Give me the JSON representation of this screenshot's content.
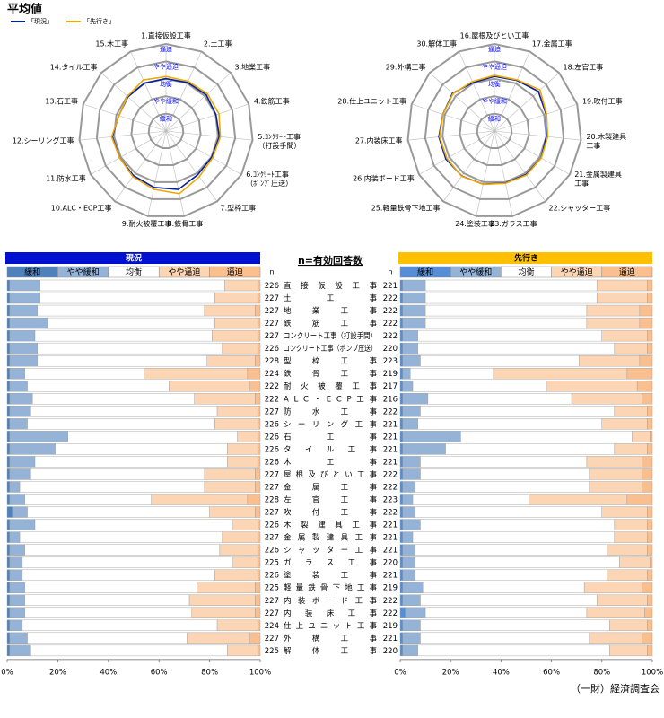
{
  "title": "平均値",
  "n_note": "n=有効回答数",
  "footer": "（一財）経済調査会",
  "chart_data": [
    {
      "type": "radar",
      "categories": [
        "1.直接仮設工事",
        "2.土工事",
        "3.地業工事",
        "4.鉄筋工事",
        "5.ｺﾝｸﾘｰﾄ工事（打設手間）",
        "6.ｺﾝｸﾘｰﾄ工事（ﾎﾟﾝﾌﾟ圧送）",
        "7.型枠工事",
        "8.鉄骨工事",
        "9.耐火被覆工事",
        "10.ALC・ECP工事",
        "11.防水工事",
        "12.シーリング工事",
        "13.石工事",
        "14.タイル工事",
        "15.木工事"
      ],
      "rlim": [
        0,
        5
      ],
      "rticks": [
        {
          "value": 1,
          "label": "緩和"
        },
        {
          "value": 2,
          "label": "やや緩和"
        },
        {
          "value": 3,
          "label": "均衡"
        },
        {
          "value": 4,
          "label": "やや逼迫"
        },
        {
          "value": 5,
          "label": "逼迫"
        }
      ],
      "series": [
        {
          "name": "「現況」",
          "color": "#00209f",
          "values": [
            3.01,
            3.05,
            3.11,
            3.02,
            3.08,
            3.03,
            3.1,
            3.43,
            3.31,
            3.17,
            3.08,
            3.1,
            2.85,
            2.94,
            3.02
          ]
        },
        {
          "name": "「先行き」",
          "color": "#f0a800",
          "values": [
            3.13,
            3.13,
            3.2,
            3.2,
            3.14,
            3.09,
            3.25,
            3.68,
            3.42,
            3.24,
            3.08,
            3.14,
            2.84,
            2.98,
            3.21
          ]
        }
      ]
    },
    {
      "type": "radar",
      "categories": [
        "16.屋根及びとい工事",
        "17.金属工事",
        "18.左官工事",
        "19.吹付工事",
        "20.木製建具工事",
        "21.金属製建具工事",
        "22.シャッター工事",
        "23.ガラス工事",
        "24.塗装工事",
        "25.軽量鉄骨下地工事",
        "26.内装ボード工事",
        "27.内装床工事",
        "28.仕上ユニット工事",
        "29.外構工事",
        "30.解体工事"
      ],
      "rlim": [
        0,
        5
      ],
      "rticks": [
        {
          "value": 1,
          "label": "緩和"
        },
        {
          "value": 2,
          "label": "やや緩和"
        },
        {
          "value": 3,
          "label": "均衡"
        },
        {
          "value": 4,
          "label": "やや逼迫"
        },
        {
          "value": 5,
          "label": "逼迫"
        }
      ],
      "series": [
        {
          "color": "#00209f",
          "values": [
            3.14,
            3.18,
            3.4,
            3.12,
            3.0,
            3.1,
            3.09,
            3.05,
            3.12,
            3.19,
            3.22,
            3.21,
            3.11,
            3.24,
            3.04
          ]
        },
        {
          "color": "#f0a800",
          "values": [
            3.2,
            3.22,
            3.53,
            3.15,
            3.08,
            3.11,
            3.13,
            3.07,
            3.13,
            3.21,
            3.15,
            3.17,
            3.1,
            3.2,
            3.11
          ]
        }
      ]
    },
    {
      "type": "bar",
      "orientation": "horizontal",
      "stacked": true,
      "title": "現況",
      "categories": [
        "直接仮設工事",
        "土工事",
        "地業工事",
        "鉄筋工事",
        "コンクリート工事（打設手間）",
        "コンクリート工事（ポンプ圧送）",
        "型枠工事",
        "鉄骨工事",
        "耐火被覆工事",
        "ALC・ECP工事",
        "防水工事",
        "シーリング工事",
        "石工事",
        "タイル工事",
        "木工事",
        "屋根及びとい工事",
        "金属工事",
        "左官工事",
        "吹付工事",
        "木製建具工事",
        "金属製建具工事",
        "シャッター工事",
        "ガラス工事",
        "塗装工事",
        "軽量鉄骨下地工事",
        "内装ボード工事",
        "内装床工事",
        "仕上ユニット工事",
        "外構工事",
        "解体工事"
      ],
      "n_label": "n",
      "n": [
        226,
        227,
        227,
        227,
        227,
        226,
        228,
        224,
        222,
        222,
        227,
        226,
        226,
        226,
        226,
        227,
        227,
        228,
        227,
        226,
        227,
        226,
        225,
        226,
        225,
        227,
        227,
        224,
        227,
        225
      ],
      "xlim": [
        0,
        100
      ],
      "xticks": [
        {
          "value": 0,
          "label": "0%"
        },
        {
          "value": 20,
          "label": "20%"
        },
        {
          "value": 40,
          "label": "40%"
        },
        {
          "value": 60,
          "label": "60%"
        },
        {
          "value": 80,
          "label": "80%"
        },
        {
          "value": 100,
          "label": "100%"
        }
      ],
      "series": [
        {
          "name": "緩和",
          "color": "#4f81bd",
          "values": [
            1,
            1,
            1,
            1,
            1,
            1,
            1,
            1,
            1,
            1,
            1,
            1,
            1,
            1,
            1,
            1,
            1,
            1,
            2,
            1,
            1,
            1,
            1,
            1,
            1,
            1,
            1,
            1,
            1,
            1
          ]
        },
        {
          "name": "やや緩和",
          "color": "#95b3d7",
          "values": [
            12,
            12,
            11,
            15,
            10,
            11,
            11,
            6,
            7,
            9,
            8,
            7,
            23,
            18,
            10,
            8,
            4,
            6,
            6,
            10,
            4,
            6,
            5,
            5,
            6,
            6,
            6,
            5,
            7,
            8
          ]
        },
        {
          "name": "均衡",
          "color": "#ffffff",
          "values": [
            73,
            69,
            66,
            66,
            70,
            73,
            67,
            47,
            56,
            64,
            74,
            74,
            67,
            68,
            76,
            69,
            73,
            50,
            72,
            78,
            80,
            77,
            83,
            76,
            68,
            65,
            66,
            77,
            63,
            78
          ]
        },
        {
          "name": "やや逼迫",
          "color": "#fcd5b4",
          "values": [
            13,
            17,
            20,
            17,
            18,
            14,
            19,
            41,
            32,
            24,
            16,
            17,
            8,
            12,
            12,
            20,
            20,
            38,
            18,
            10,
            14,
            15,
            10,
            17,
            23,
            26,
            25,
            16,
            25,
            12
          ]
        },
        {
          "name": "逼迫",
          "color": "#fabf8f",
          "values": [
            1,
            1,
            2,
            1,
            1,
            1,
            2,
            5,
            4,
            2,
            1,
            1,
            1,
            1,
            1,
            2,
            2,
            5,
            2,
            1,
            1,
            1,
            1,
            1,
            2,
            2,
            2,
            1,
            4,
            1
          ]
        }
      ]
    },
    {
      "type": "bar",
      "orientation": "horizontal",
      "stacked": true,
      "title": "先行き",
      "n_label": "n",
      "n": [
        221,
        222,
        222,
        222,
        222,
        220,
        223,
        219,
        217,
        216,
        222,
        221,
        221,
        221,
        221,
        222,
        222,
        223,
        222,
        221,
        221,
        221,
        220,
        221,
        219,
        222,
        222,
        219,
        221,
        220
      ],
      "xlim": [
        0,
        100
      ],
      "xticks": [
        {
          "value": 0,
          "label": "0%"
        },
        {
          "value": 20,
          "label": "20%"
        },
        {
          "value": 40,
          "label": "40%"
        },
        {
          "value": 60,
          "label": "60%"
        },
        {
          "value": 80,
          "label": "80%"
        },
        {
          "value": 100,
          "label": "100%"
        }
      ],
      "series": [
        {
          "name": "緩和",
          "color": "#558ed5",
          "values": [
            1,
            1,
            1,
            1,
            1,
            1,
            1,
            1,
            1,
            1,
            1,
            1,
            1,
            1,
            1,
            1,
            1,
            1,
            1,
            1,
            1,
            1,
            1,
            1,
            1,
            1,
            2,
            1,
            1,
            1
          ]
        },
        {
          "name": "やや緩和",
          "color": "#95b3d7",
          "values": [
            9,
            9,
            9,
            9,
            6,
            6,
            7,
            3,
            4,
            10,
            7,
            6,
            23,
            17,
            7,
            7,
            5,
            4,
            5,
            7,
            4,
            5,
            5,
            5,
            8,
            7,
            8,
            7,
            7,
            6
          ]
        },
        {
          "name": "均衡",
          "color": "#ffffff",
          "values": [
            68,
            68,
            64,
            64,
            73,
            78,
            63,
            33,
            53,
            57,
            77,
            73,
            68,
            67,
            66,
            67,
            69,
            46,
            74,
            77,
            80,
            76,
            81,
            76,
            64,
            70,
            64,
            75,
            67,
            76
          ]
        },
        {
          "name": "やや逼迫",
          "color": "#fcd5b4",
          "values": [
            20,
            20,
            21,
            21,
            18,
            13,
            24,
            53,
            36,
            28,
            13,
            18,
            7,
            13,
            22,
            21,
            21,
            39,
            18,
            13,
            13,
            16,
            12,
            16,
            23,
            20,
            23,
            15,
            21,
            15
          ]
        },
        {
          "name": "逼迫",
          "color": "#fabf8f",
          "values": [
            2,
            2,
            5,
            5,
            2,
            2,
            5,
            10,
            6,
            4,
            2,
            2,
            1,
            2,
            4,
            4,
            4,
            10,
            2,
            2,
            2,
            2,
            1,
            2,
            4,
            2,
            3,
            2,
            4,
            2
          ]
        }
      ]
    }
  ]
}
